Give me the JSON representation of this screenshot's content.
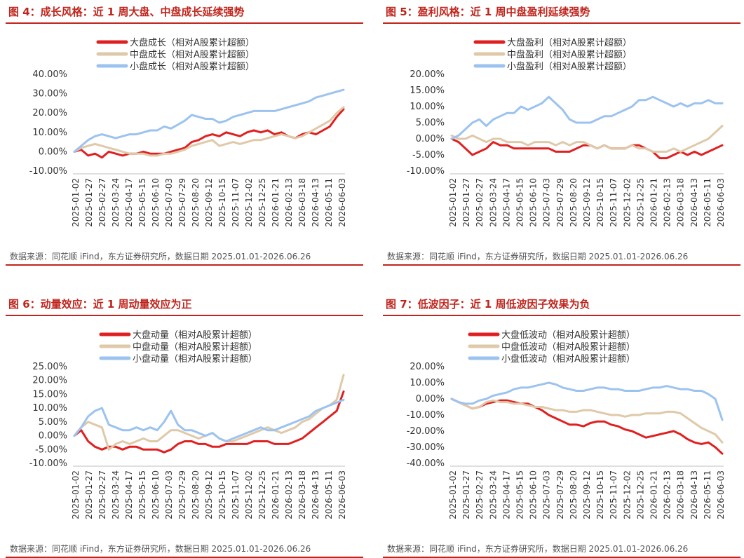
{
  "panels": [
    {
      "title": "图 4：成长风格：近 1 周大盘、中盘成长延续强势",
      "source": "数据来源：同花顺 iFind，东方证券研究所，数据日期 2025.01.01-2026.06.26",
      "chart_data": {
        "type": "line",
        "x_ticks": [
          "2025-01-02",
          "2025-01-27",
          "2025-02-27",
          "2025-03-24",
          "2025-04-17",
          "2025-05-15",
          "2025-06-10",
          "2025-07-03",
          "2025-07-29",
          "2025-08-20",
          "2025-09-12",
          "2025-10-15",
          "2025-11-07",
          "2025-12-02",
          "2025-12-25",
          "2026-01-21",
          "2026-02-13",
          "2026-03-18",
          "2026-04-13",
          "2026-05-11",
          "2026-06-03"
        ],
        "y_ticks": [
          "40.00%",
          "30.00%",
          "20.00%",
          "10.00%",
          "0.00%",
          "-10.00%"
        ],
        "ylim": [
          -10,
          40
        ],
        "series": [
          {
            "name": "大盘成长（相对A股累计超额）",
            "color": "#e02020",
            "values": [
              0,
              1,
              -2,
              -1,
              -3,
              0,
              -1,
              -2,
              -1,
              -1,
              0,
              -1,
              -1,
              -1,
              0,
              1,
              2,
              5,
              6,
              8,
              9,
              8,
              10,
              9,
              8,
              10,
              11,
              10,
              11,
              9,
              10,
              8,
              7,
              9,
              10,
              9,
              11,
              13,
              18,
              22
            ]
          },
          {
            "name": "中盘成长（相对A股累计超额）",
            "color": "#dfc9a9",
            "values": [
              0,
              2,
              3,
              4,
              3,
              2,
              1,
              0,
              -1,
              -1,
              -1,
              -2,
              -2,
              -1,
              -1,
              0,
              1,
              3,
              4,
              5,
              6,
              3,
              4,
              5,
              4,
              5,
              6,
              6,
              7,
              8,
              9,
              8,
              7,
              8,
              10,
              12,
              14,
              16,
              20,
              23
            ]
          },
          {
            "name": "小盘成长（相对A股累计超额）",
            "color": "#9cc3f0",
            "values": [
              0,
              3,
              6,
              8,
              9,
              8,
              7,
              8,
              9,
              9,
              10,
              11,
              11,
              13,
              12,
              14,
              16,
              19,
              18,
              17,
              17,
              15,
              16,
              18,
              19,
              20,
              21,
              21,
              21,
              21,
              22,
              23,
              24,
              25,
              26,
              28,
              29,
              30,
              31,
              32
            ]
          }
        ]
      }
    },
    {
      "title": "图 5：盈利风格：近 1 周中盘盈利延续强势",
      "source": "数据来源：同花顺 iFind，东方证券研究所，数据日期 2025.01.01-2026.06.26",
      "chart_data": {
        "type": "line",
        "x_ticks": [
          "2025-01-02",
          "2025-01-27",
          "2025-02-27",
          "2025-03-24",
          "2025-04-17",
          "2025-05-15",
          "2025-06-10",
          "2025-07-03",
          "2025-07-29",
          "2025-08-20",
          "2025-09-12",
          "2025-10-15",
          "2025-11-07",
          "2025-12-02",
          "2025-12-25",
          "2026-01-21",
          "2026-02-13",
          "2026-03-18",
          "2026-04-13",
          "2026-05-11",
          "2026-06-03"
        ],
        "y_ticks": [
          "20.00%",
          "15.00%",
          "10.00%",
          "5.00%",
          "0.00%",
          "-5.00%",
          "-10.00%"
        ],
        "ylim": [
          -10,
          20
        ],
        "series": [
          {
            "name": "大盘盈利（相对A股累计超额）",
            "color": "#e02020",
            "values": [
              0,
              -1,
              -3,
              -5,
              -4,
              -3,
              -1,
              -2,
              -2,
              -3,
              -3,
              -3,
              -3,
              -3,
              -3,
              -4,
              -4,
              -4,
              -3,
              -2,
              -2,
              -3,
              -2,
              -3,
              -3,
              -3,
              -2,
              -2,
              -3,
              -4,
              -6,
              -6,
              -5,
              -4,
              -5,
              -4,
              -5,
              -4,
              -3,
              -2
            ]
          },
          {
            "name": "中盘盈利（相对A股累计超额）",
            "color": "#dfc9a9",
            "values": [
              1,
              0,
              0,
              1,
              0,
              -1,
              0,
              0,
              -1,
              -1,
              -1,
              -2,
              -1,
              -1,
              -1,
              -2,
              -1,
              -2,
              -1,
              -1,
              -2,
              -3,
              -2,
              -3,
              -3,
              -3,
              -2,
              -3,
              -3,
              -4,
              -4,
              -4,
              -3,
              -4,
              -3,
              -2,
              -1,
              0,
              2,
              4
            ]
          },
          {
            "name": "小盘盈利（相对A股累计超额）",
            "color": "#9cc3f0",
            "values": [
              0,
              1,
              3,
              5,
              6,
              4,
              6,
              7,
              8,
              8,
              10,
              9,
              10,
              11,
              13,
              11,
              9,
              6,
              5,
              5,
              5,
              6,
              7,
              7,
              8,
              9,
              10,
              12,
              12,
              13,
              12,
              11,
              10,
              11,
              10,
              11,
              11,
              12,
              11,
              11
            ]
          }
        ]
      }
    },
    {
      "title": "图 6：动量效应：近 1 周动量效应为正",
      "source": "数据来源：同花顺 iFind，东方证券研究所，数据日期 2025.01.01-2026.06.26",
      "chart_data": {
        "type": "line",
        "x_ticks": [
          "2025-01-02",
          "2025-01-27",
          "2025-02-27",
          "2025-03-24",
          "2025-04-17",
          "2025-05-15",
          "2025-06-10",
          "2025-07-03",
          "2025-07-29",
          "2025-08-20",
          "2025-09-12",
          "2025-10-15",
          "2025-11-07",
          "2025-12-02",
          "2025-12-25",
          "2026-01-21",
          "2026-02-13",
          "2026-03-18",
          "2026-04-13",
          "2026-05-11",
          "2026-06-03"
        ],
        "y_ticks": [
          "25.00%",
          "20.00%",
          "15.00%",
          "10.00%",
          "5.00%",
          "0.00%",
          "-5.00%",
          "-10.00%"
        ],
        "ylim": [
          -10,
          25
        ],
        "series": [
          {
            "name": "大盘动量（相对A股累计超额）",
            "color": "#e02020",
            "values": [
              0,
              2,
              -2,
              -4,
              -5,
              -4,
              -4,
              -5,
              -4,
              -4,
              -5,
              -5,
              -5,
              -6,
              -5,
              -3,
              -2,
              -2,
              -3,
              -3,
              -4,
              -4,
              -3,
              -3,
              -3,
              -3,
              -2,
              -2,
              -2,
              -3,
              -3,
              -3,
              -2,
              -1,
              1,
              3,
              5,
              7,
              9,
              16
            ]
          },
          {
            "name": "中盘动量（相对A股累计超额）",
            "color": "#dfc9a9",
            "values": [
              0,
              3,
              5,
              4,
              3,
              -5,
              -3,
              -2,
              -3,
              -2,
              -1,
              -2,
              -2,
              0,
              2,
              2,
              1,
              0,
              -1,
              0,
              1,
              -1,
              -2,
              -2,
              -1,
              0,
              1,
              2,
              3,
              2,
              1,
              2,
              3,
              5,
              6,
              8,
              10,
              11,
              13,
              22
            ]
          },
          {
            "name": "小盘动量（相对A股累计超额）",
            "color": "#9cc3f0",
            "values": [
              0,
              3,
              7,
              9,
              10,
              4,
              3,
              2,
              2,
              3,
              2,
              3,
              2,
              5,
              9,
              4,
              2,
              2,
              1,
              0,
              1,
              -1,
              -2,
              -1,
              0,
              1,
              2,
              3,
              2,
              2,
              3,
              4,
              5,
              6,
              7,
              9,
              10,
              11,
              12,
              13
            ]
          }
        ]
      }
    },
    {
      "title": "图 7：低波因子：近 1 周低波因子效果为负",
      "source": "数据来源：同花顺 iFind，东方证券研究所，数据日期 2025.01.01-2026.06.26",
      "chart_data": {
        "type": "line",
        "x_ticks": [
          "2025-01-02",
          "2025-01-27",
          "2025-02-27",
          "2025-03-24",
          "2025-04-17",
          "2025-05-15",
          "2025-06-10",
          "2025-07-03",
          "2025-07-29",
          "2025-08-20",
          "2025-09-12",
          "2025-10-15",
          "2025-11-07",
          "2025-12-02",
          "2025-12-25",
          "2026-01-21",
          "2026-02-13",
          "2026-03-18",
          "2026-04-13",
          "2026-05-11",
          "2026-06-03"
        ],
        "y_ticks": [
          "20.00%",
          "10.00%",
          "0.00%",
          "-10.00%",
          "-20.00%",
          "-30.00%",
          "-40.00%"
        ],
        "ylim": [
          -40,
          20
        ],
        "series": [
          {
            "name": "大盘低波动（相对A股累计超额）",
            "color": "#e02020",
            "values": [
              0,
              -2,
              -4,
              -6,
              -5,
              -3,
              -2,
              -1,
              -1,
              -2,
              -3,
              -3,
              -5,
              -7,
              -10,
              -12,
              -14,
              -16,
              -16,
              -17,
              -15,
              -14,
              -14,
              -16,
              -17,
              -19,
              -20,
              -22,
              -24,
              -23,
              -22,
              -21,
              -20,
              -22,
              -25,
              -27,
              -28,
              -27,
              -30,
              -34
            ]
          },
          {
            "name": "中盘低波动（相对A股累计超额）",
            "color": "#dfc9a9",
            "values": [
              0,
              -2,
              -4,
              -6,
              -5,
              -2,
              -1,
              -2,
              -2,
              -3,
              -3,
              -4,
              -5,
              -5,
              -6,
              -7,
              -7,
              -8,
              -8,
              -7,
              -7,
              -8,
              -9,
              -10,
              -10,
              -11,
              -10,
              -10,
              -9,
              -9,
              -9,
              -8,
              -8,
              -9,
              -12,
              -15,
              -18,
              -20,
              -22,
              -27
            ]
          },
          {
            "name": "小盘低波动（相对A股累计超额）",
            "color": "#9cc3f0",
            "values": [
              0,
              -2,
              -3,
              -3,
              -1,
              0,
              2,
              3,
              4,
              6,
              7,
              7,
              8,
              9,
              10,
              9,
              7,
              6,
              5,
              5,
              6,
              7,
              7,
              6,
              6,
              5,
              5,
              5,
              6,
              7,
              7,
              8,
              7,
              6,
              6,
              5,
              5,
              3,
              0,
              -13
            ]
          }
        ]
      }
    }
  ]
}
